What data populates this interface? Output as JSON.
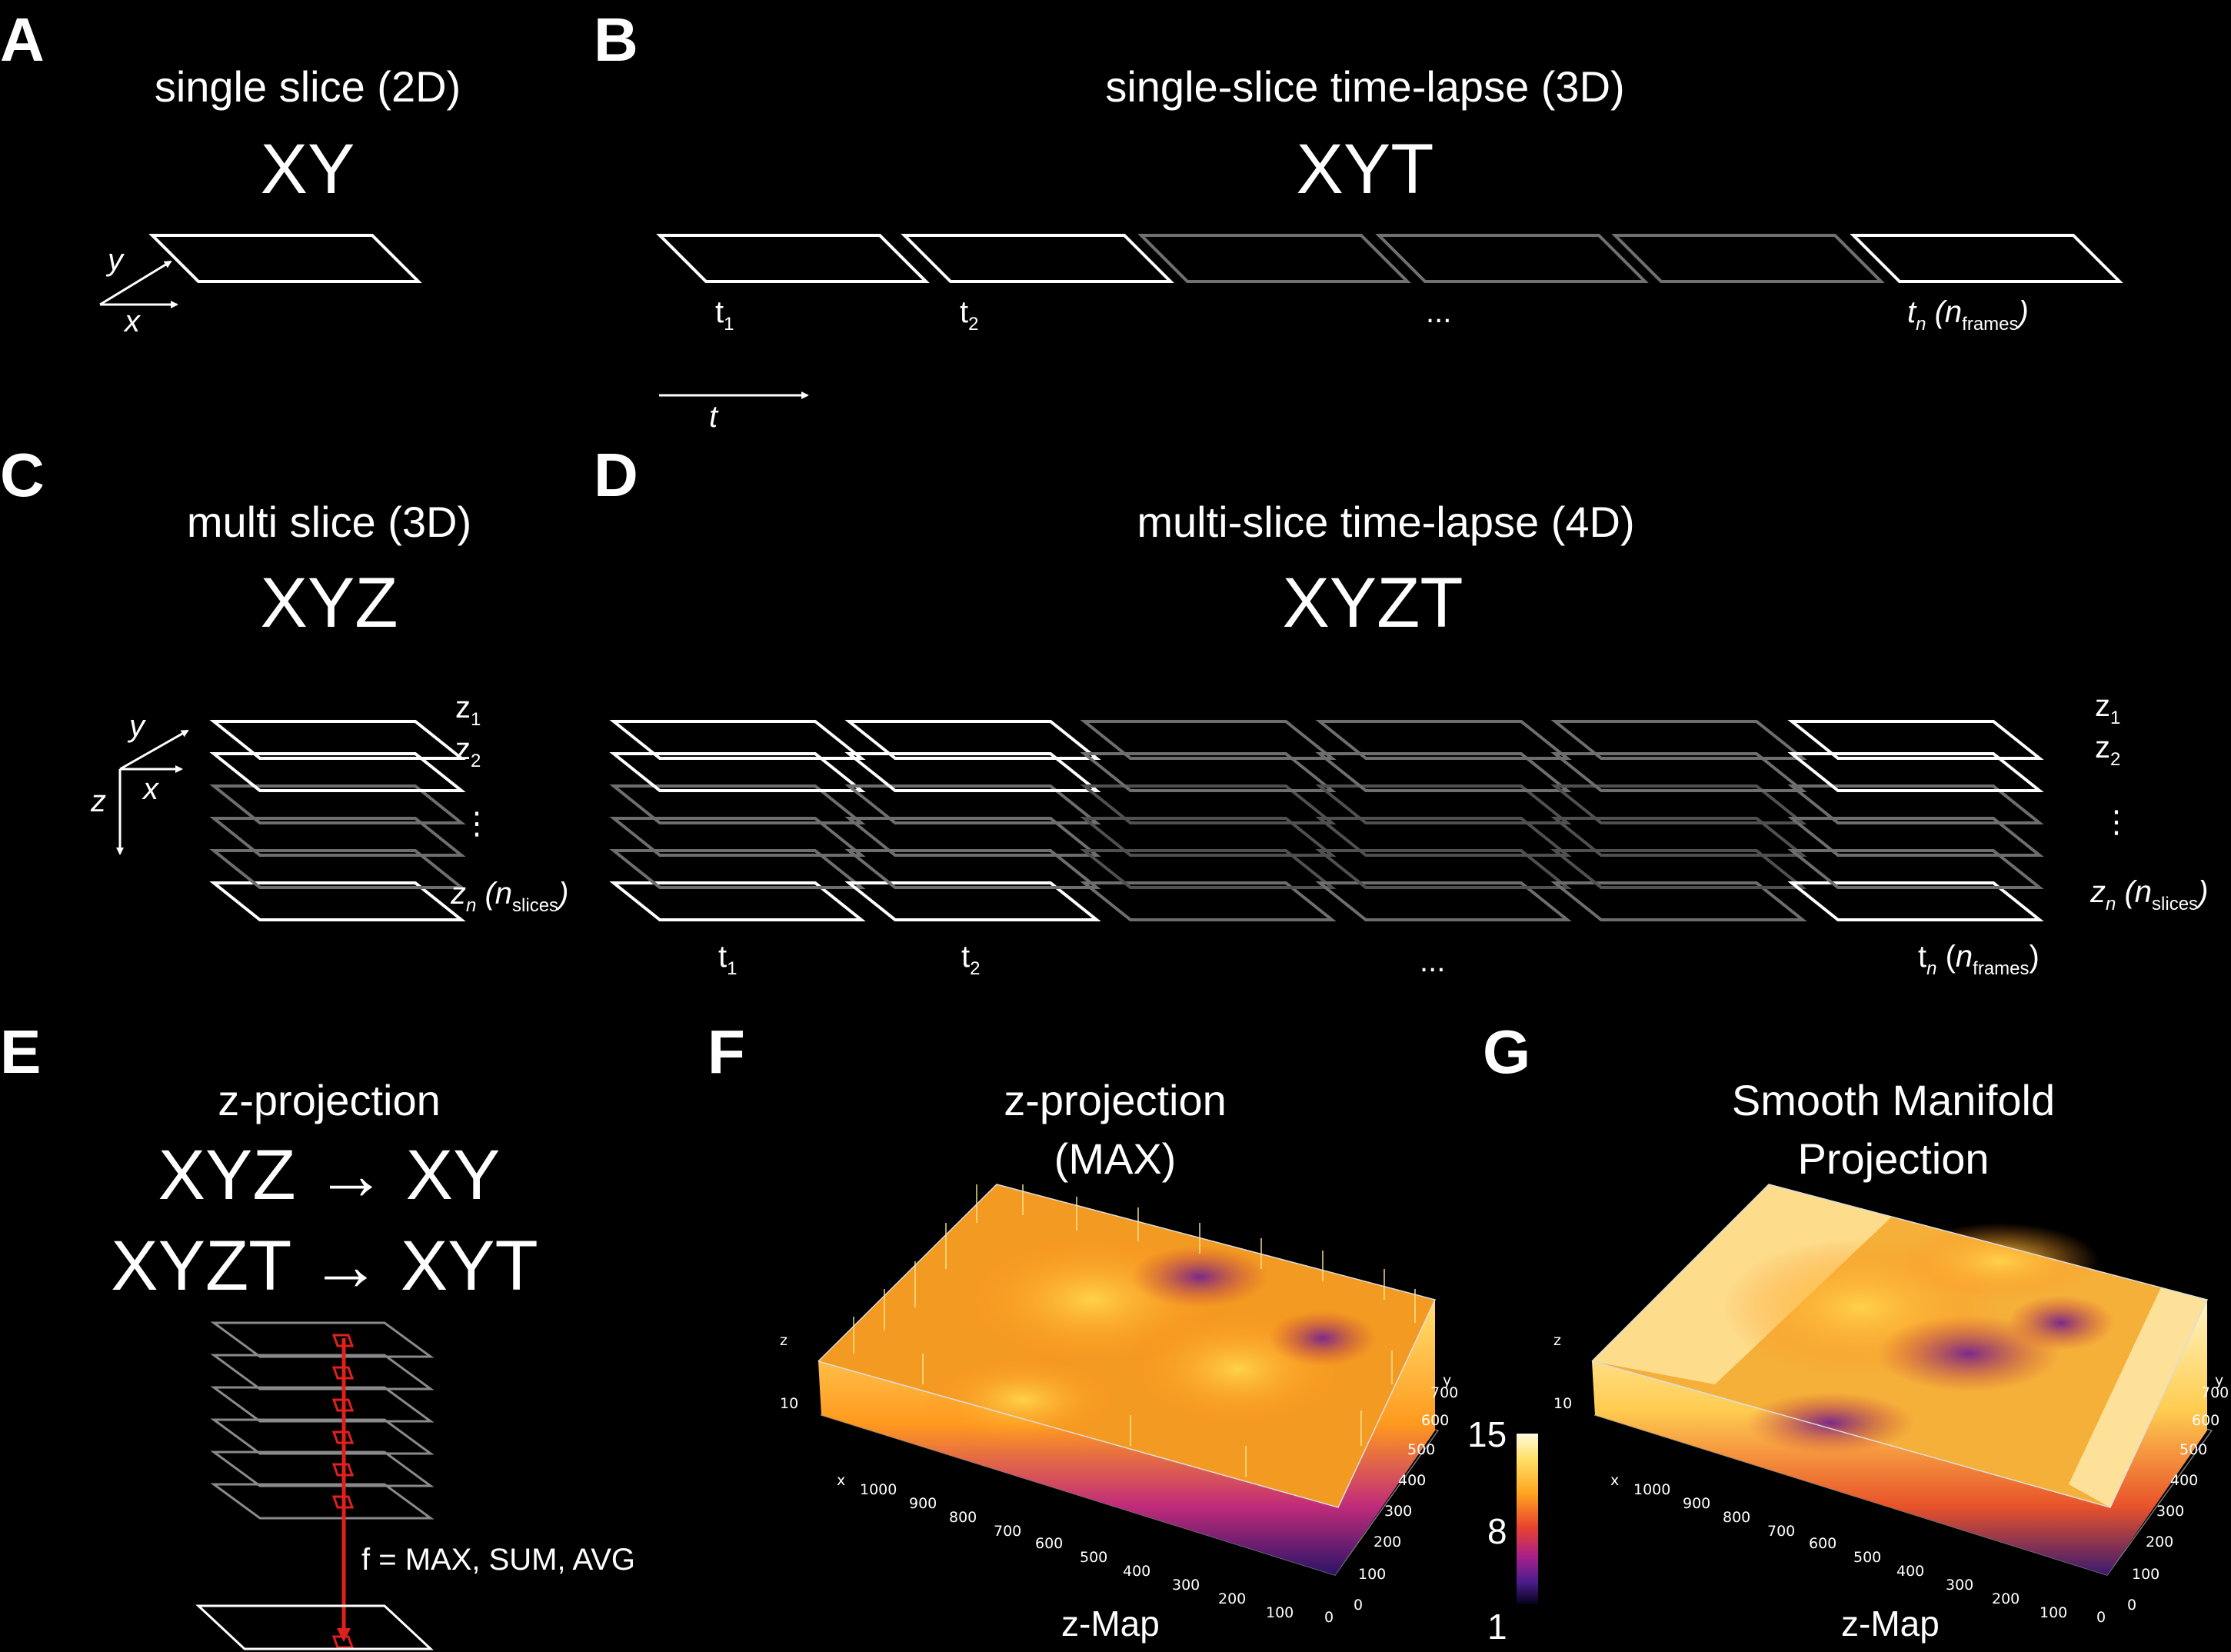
{
  "panels": {
    "A": {
      "letter": "A",
      "title": "single slice (2D)",
      "dims": "XY",
      "axis_x": "x",
      "axis_y": "y"
    },
    "B": {
      "letter": "B",
      "title": "single-slice time-lapse (3D)",
      "dims": "XYT",
      "t1": "t",
      "t1_sub": "1",
      "t2": "t",
      "t2_sub": "2",
      "ellipsis": "...",
      "tn": "t",
      "tn_sub": "n",
      "nframes_n": "n",
      "nframes_sub": "frames",
      "axis_t": "t"
    },
    "C": {
      "letter": "C",
      "title": "multi slice (3D)",
      "dims": "XYZ",
      "axis_x": "x",
      "axis_y": "y",
      "axis_z": "z",
      "z1": "z",
      "z1_sub": "1",
      "z2": "z",
      "z2_sub": "2",
      "vdots": "⋮",
      "zn": "z",
      "zn_sub": "n",
      "nslices_n": "n",
      "nslices_sub": "slices"
    },
    "D": {
      "letter": "D",
      "title": "multi-slice time-lapse (4D)",
      "dims": "XYZT",
      "t1": "t",
      "t1_sub": "1",
      "t2": "t",
      "t2_sub": "2",
      "ellipsis": "...",
      "tn": "t",
      "tn_sub": "n",
      "nframes_n": "n",
      "nframes_sub": "frames",
      "z1": "z",
      "z1_sub": "1",
      "z2": "z",
      "z2_sub": "2",
      "vdots": "⋮",
      "zn": "z",
      "zn_sub": "n",
      "nslices_n": "n",
      "nslices_sub": "slices"
    },
    "E": {
      "letter": "E",
      "title": "z-projection",
      "line1": "XYZ → XY",
      "line2": "XYZT → XYT",
      "func": "f = MAX, SUM, AVG"
    },
    "F": {
      "letter": "F",
      "title1": "z-projection",
      "title2": "(MAX)",
      "caption": "z-Map",
      "z_axis": "z",
      "z_tick": "10",
      "x_axis": "x",
      "x_ticks": [
        "1000",
        "900",
        "800",
        "700",
        "600",
        "500",
        "400",
        "300",
        "200",
        "100",
        "0"
      ],
      "y_axis": "y",
      "y_ticks": [
        "0",
        "100",
        "200",
        "300",
        "400",
        "500",
        "600",
        "700"
      ]
    },
    "G": {
      "letter": "G",
      "title1": "Smooth Manifold",
      "title2": "Projection",
      "caption": "z-Map",
      "z_axis": "z",
      "z_tick": "10",
      "x_axis": "x",
      "x_ticks": [
        "1000",
        "900",
        "800",
        "700",
        "600",
        "500",
        "400",
        "300",
        "200",
        "100",
        "0"
      ],
      "y_axis": "y",
      "y_ticks": [
        "0",
        "100",
        "200",
        "300",
        "400",
        "500",
        "600",
        "700"
      ]
    }
  },
  "colorbar": {
    "max": "15",
    "mid": "8",
    "min": "1"
  },
  "colors": {
    "background": "#000000",
    "frame": "#ffffff",
    "dim_frame": "#6e6e6e",
    "projection": "#e0201e"
  }
}
